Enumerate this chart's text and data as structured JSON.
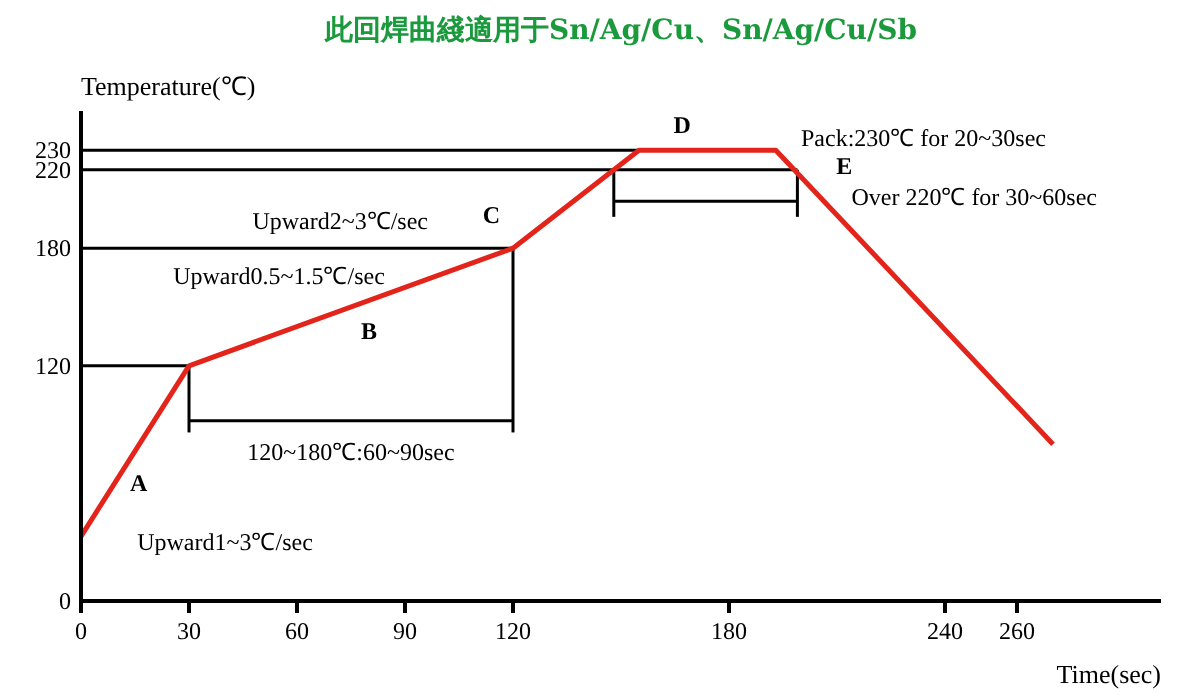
{
  "chart_data": {
    "type": "line",
    "title": "此回焊曲綫適用于Sn/Ag/Cu、Sn/Ag/Cu/Sb",
    "ylabel": "Temperature(℃)",
    "xlabel": "Time(sec)",
    "xlim": [
      0,
      300
    ],
    "ylim": [
      0,
      250
    ],
    "xticks": [
      0,
      30,
      60,
      90,
      120,
      180,
      240,
      260
    ],
    "yticks": [
      0,
      120,
      180,
      220,
      230
    ],
    "grid": false,
    "series": [
      {
        "color": "#000000",
        "x": [
          0,
          30
        ],
        "values": [
          120,
          120
        ]
      },
      {
        "color": "#000000",
        "x": [
          0,
          120
        ],
        "values": [
          180,
          180
        ]
      },
      {
        "color": "#000000",
        "x": [
          0,
          199
        ],
        "values": [
          220,
          220
        ]
      },
      {
        "color": "#000000",
        "x": [
          0,
          155
        ],
        "values": [
          230,
          230
        ]
      },
      {
        "color": "#000000",
        "x": [
          30,
          30
        ],
        "values": [
          120,
          86
        ]
      },
      {
        "color": "#000000",
        "x": [
          120,
          120
        ],
        "values": [
          180,
          86
        ]
      },
      {
        "color": "#000000",
        "x": [
          30,
          120
        ],
        "values": [
          92,
          92
        ]
      },
      {
        "color": "#000000",
        "x": [
          148,
          148
        ],
        "values": [
          220,
          196
        ]
      },
      {
        "color": "#000000",
        "x": [
          199,
          199
        ],
        "values": [
          220,
          196
        ]
      },
      {
        "color": "#000000",
        "x": [
          148,
          199
        ],
        "values": [
          204,
          204
        ]
      },
      {
        "color": "#e3241b",
        "x": [
          0,
          30,
          120,
          155,
          193,
          270
        ],
        "values": [
          33,
          120,
          180,
          230,
          230,
          80
        ]
      }
    ],
    "annotations": [
      "A",
      "Upward1~3℃/sec",
      "B",
      "Upward0.5~1.5℃/sec",
      "Upward2~3℃/sec",
      "C",
      "120~180℃:60~90sec",
      "D",
      "Pack:230℃ for 20~30sec",
      "E",
      "Over 220℃ for 30~60sec"
    ]
  }
}
